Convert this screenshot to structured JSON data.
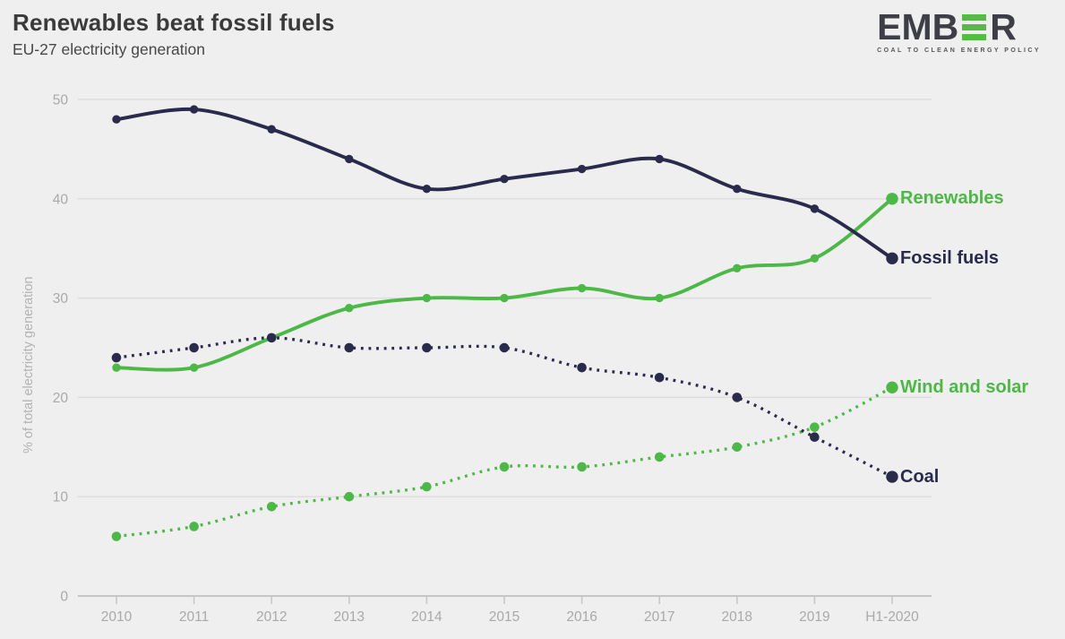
{
  "header": {
    "title": "Renewables beat fossil fuels",
    "subtitle": "EU-27 electricity generation"
  },
  "logo": {
    "text_before": "EMB",
    "text_after": "R",
    "tagline": "COAL TO CLEAN ENERGY POLICY",
    "green": "#56bb46",
    "dark": "#3e3e47"
  },
  "colors": {
    "background": "#efefef",
    "green": "#4cb845",
    "navy": "#2a2a4c",
    "gridline": "#dcdcdc",
    "axis_line": "#c6c6c6",
    "axis_text": "#a9a9a9",
    "title_text": "#3a3a3a"
  },
  "chart_data": {
    "type": "line",
    "title": "Renewables beat fossil fuels",
    "subtitle": "EU-27 electricity generation",
    "xlabel": "",
    "ylabel": "% of total electricity generation",
    "x_labels": [
      "2010",
      "2011",
      "2012",
      "2013",
      "2014",
      "2015",
      "2016",
      "2017",
      "2018",
      "2019",
      "H1-2020"
    ],
    "y_ticks": [
      0,
      10,
      20,
      30,
      40,
      50
    ],
    "ylim": [
      0,
      50
    ],
    "grid": "horizontal",
    "legend_position": "right-of-line-end",
    "series": [
      {
        "name": "Fossil fuels",
        "style": "solid",
        "color": "#2a2a4c",
        "values": [
          48,
          49,
          47,
          44,
          41,
          42,
          43,
          44,
          41,
          39,
          34
        ]
      },
      {
        "name": "Renewables",
        "style": "solid",
        "color": "#4cb845",
        "values": [
          23,
          23,
          26,
          29,
          30,
          30,
          31,
          30,
          33,
          34,
          40
        ]
      },
      {
        "name": "Coal",
        "style": "dotted",
        "color": "#2a2a4c",
        "values": [
          24,
          25,
          26,
          25,
          25,
          25,
          23,
          22,
          20,
          16,
          12
        ]
      },
      {
        "name": "Wind and solar",
        "style": "dotted",
        "color": "#4cb845",
        "values": [
          6,
          7,
          9,
          10,
          11,
          13,
          13,
          14,
          15,
          17,
          21
        ]
      }
    ]
  }
}
